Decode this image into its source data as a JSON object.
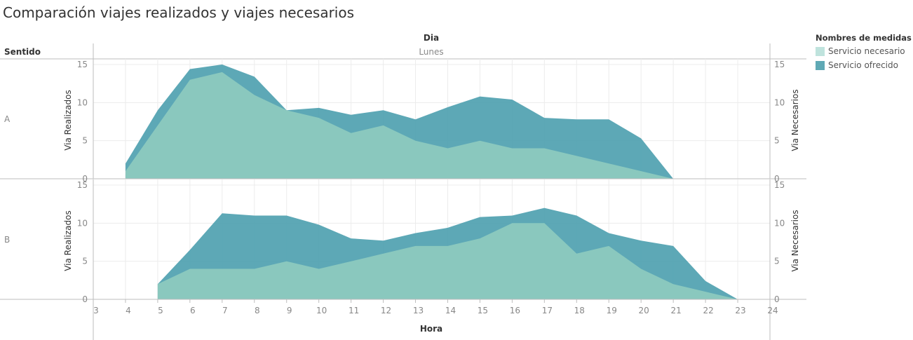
{
  "title": "Comparación viajes realizados y viajes necesarios",
  "legend": {
    "title": "Nombres de medidas",
    "items": [
      {
        "label": "Servicio necesario",
        "color": "#bfe3dd"
      },
      {
        "label": "Servicio ofrecido",
        "color": "#5fa9b5"
      }
    ]
  },
  "headers": {
    "column_field": "Dia",
    "column_value": "Lunes",
    "row_field": "Sentido"
  },
  "colors": {
    "ofrecido_fill": "#4fa1b0",
    "necesario_fill": "#8cc9bf",
    "grid": "#ececec",
    "border": "#bdbdbd",
    "tick": "#888888"
  },
  "chart_data": {
    "type": "area",
    "xlabel": "Hora",
    "x_ticks": [
      3,
      4,
      5,
      6,
      7,
      8,
      9,
      10,
      11,
      12,
      13,
      14,
      15,
      16,
      17,
      18,
      19,
      20,
      21,
      22,
      23,
      24
    ],
    "xlim": [
      3,
      24
    ],
    "left_axis_label": "Via Realizados",
    "right_axis_label": "Via Necesarios",
    "ylim": [
      0,
      15
    ],
    "y_ticks": [
      0,
      5,
      10,
      15
    ],
    "panels": [
      {
        "row": "A",
        "series": [
          {
            "name": "Servicio ofrecido",
            "x": [
              4,
              5,
              6,
              7,
              8,
              9,
              10,
              11,
              12,
              13,
              14,
              15,
              16,
              17,
              18,
              19,
              20,
              21
            ],
            "values": [
              2,
              9,
              14.4,
              15,
              13.4,
              9,
              9.3,
              8.4,
              9,
              7.8,
              9.4,
              10.8,
              10.4,
              8,
              7.8,
              7.8,
              5.3,
              0
            ]
          },
          {
            "name": "Servicio necesario",
            "x": [
              4,
              5,
              6,
              7,
              8,
              9,
              10,
              11,
              12,
              13,
              14,
              15,
              16,
              17,
              18,
              19,
              20,
              21
            ],
            "values": [
              1,
              7,
              13,
              14,
              11,
              9,
              8,
              6,
              7,
              5,
              4,
              5,
              4,
              4,
              3,
              2,
              1,
              0
            ]
          }
        ]
      },
      {
        "row": "B",
        "series": [
          {
            "name": "Servicio ofrecido",
            "x": [
              5,
              6,
              7,
              8,
              9,
              10,
              11,
              12,
              13,
              14,
              15,
              16,
              17,
              18,
              19,
              20,
              21,
              22,
              23
            ],
            "values": [
              2,
              6.5,
              11.3,
              11,
              11,
              9.8,
              8,
              7.7,
              8.7,
              9.4,
              10.8,
              11,
              12,
              11,
              8.7,
              7.7,
              7,
              2.4,
              0
            ]
          },
          {
            "name": "Servicio necesario",
            "x": [
              5,
              6,
              7,
              8,
              9,
              10,
              11,
              12,
              13,
              14,
              15,
              16,
              17,
              18,
              19,
              20,
              21,
              22,
              23
            ],
            "values": [
              2,
              4,
              4,
              4,
              5,
              4,
              5,
              6,
              7,
              7,
              8,
              10,
              10,
              6,
              7,
              4,
              2,
              1,
              0
            ]
          }
        ]
      }
    ]
  }
}
